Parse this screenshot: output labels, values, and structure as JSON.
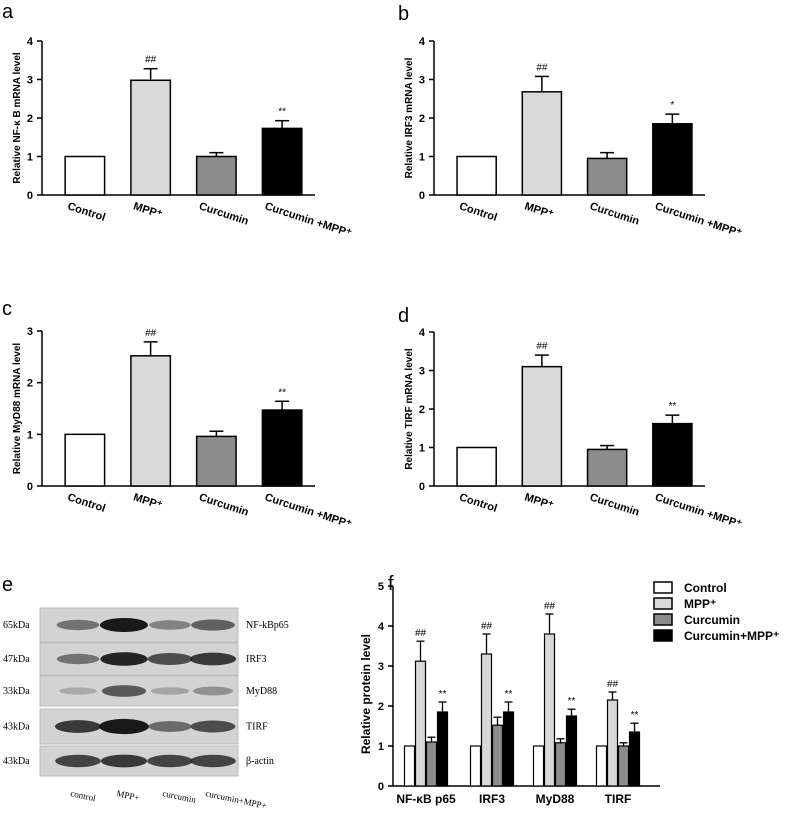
{
  "panels": [
    {
      "letter": "a",
      "ylabel": "Relative NF-κ B mRNA level",
      "chart_data": {
        "type": "bar",
        "categories": [
          "Control",
          "MPP⁺",
          "Curcumin",
          "Curcumin +MPP⁺"
        ],
        "values": [
          1.0,
          2.98,
          1.0,
          1.73
        ],
        "errors": [
          0,
          0.3,
          0.1,
          0.2
        ],
        "annotations": [
          "",
          "##",
          "",
          "**"
        ],
        "ylim": [
          0,
          4
        ],
        "yticks": [
          0,
          1,
          2,
          3,
          4
        ]
      }
    },
    {
      "letter": "b",
      "ylabel": "Relative IRF3 mRNA level",
      "chart_data": {
        "type": "bar",
        "categories": [
          "Control",
          "MPP⁺",
          "Curcumin",
          "Curcumin +MPP⁺"
        ],
        "values": [
          1.0,
          2.68,
          0.95,
          1.85
        ],
        "errors": [
          0,
          0.4,
          0.15,
          0.25
        ],
        "annotations": [
          "",
          "##",
          "",
          "*"
        ],
        "ylim": [
          0,
          4
        ],
        "yticks": [
          0,
          1,
          2,
          3,
          4
        ]
      }
    },
    {
      "letter": "c",
      "ylabel": "Relative MyD88 mRNA level",
      "chart_data": {
        "type": "bar",
        "categories": [
          "Control",
          "MPP⁺",
          "Curcumin",
          "Curcumin +MPP⁺"
        ],
        "values": [
          1.0,
          2.52,
          0.96,
          1.47
        ],
        "errors": [
          0,
          0.27,
          0.1,
          0.17
        ],
        "annotations": [
          "",
          "##",
          "",
          "**"
        ],
        "ylim": [
          0,
          3
        ],
        "yticks": [
          0,
          1,
          2,
          3
        ]
      }
    },
    {
      "letter": "d",
      "ylabel": "Relative TIRF mRNA level",
      "chart_data": {
        "type": "bar",
        "categories": [
          "Control",
          "MPP⁺",
          "Curcumin",
          "Curcumin +MPP⁺"
        ],
        "values": [
          1.0,
          3.1,
          0.95,
          1.62
        ],
        "errors": [
          0,
          0.3,
          0.1,
          0.22
        ],
        "annotations": [
          "",
          "##",
          "",
          "**"
        ],
        "ylim": [
          0,
          4
        ],
        "yticks": [
          0,
          1,
          2,
          3,
          4
        ]
      }
    }
  ],
  "blot": {
    "letter": "e",
    "rows": [
      {
        "kda": "65kDa",
        "name": "NF-kBp65"
      },
      {
        "kda": "47kDa",
        "name": "IRF3"
      },
      {
        "kda": "33kDa",
        "name": "MyD88"
      },
      {
        "kda": "43kDa",
        "name": "TIRF"
      },
      {
        "kda": "43kDa",
        "name": "β-actin"
      }
    ],
    "lanes": [
      "control",
      "MPP+",
      "curcumin",
      "curcumin+MPP+"
    ]
  },
  "panel_f": {
    "letter": "f",
    "ylabel": "Relative protein level",
    "chart_data": {
      "type": "bar",
      "categories": [
        "NF-κB p65",
        "IRF3",
        "MyD88",
        "TIRF"
      ],
      "series": [
        {
          "name": "Control",
          "values": [
            1.0,
            1.0,
            1.0,
            1.0
          ],
          "errors": [
            0,
            0,
            0,
            0
          ],
          "annotations": [
            "",
            "",
            "",
            ""
          ]
        },
        {
          "name": "MPP⁺",
          "values": [
            3.12,
            3.3,
            3.8,
            2.15
          ],
          "errors": [
            0.5,
            0.5,
            0.5,
            0.2
          ],
          "annotations": [
            "##",
            "##",
            "##",
            "##"
          ]
        },
        {
          "name": "Curcumin",
          "values": [
            1.1,
            1.52,
            1.08,
            1.0
          ],
          "errors": [
            0.12,
            0.2,
            0.1,
            0.08
          ],
          "annotations": [
            "",
            "",
            "",
            ""
          ]
        },
        {
          "name": "Curcumin+MPP⁺",
          "values": [
            1.85,
            1.85,
            1.75,
            1.35
          ],
          "errors": [
            0.25,
            0.25,
            0.17,
            0.22
          ],
          "annotations": [
            "**",
            "**",
            "**",
            "**"
          ]
        }
      ],
      "ylim": [
        0,
        5
      ],
      "yticks": [
        0,
        1,
        2,
        3,
        4,
        5
      ],
      "legend_position": "top-right"
    }
  },
  "colors": {
    "control": "#ffffff",
    "mpp": "#d9d9d9",
    "curcumin": "#8c8c8c",
    "combo": "#000000"
  }
}
